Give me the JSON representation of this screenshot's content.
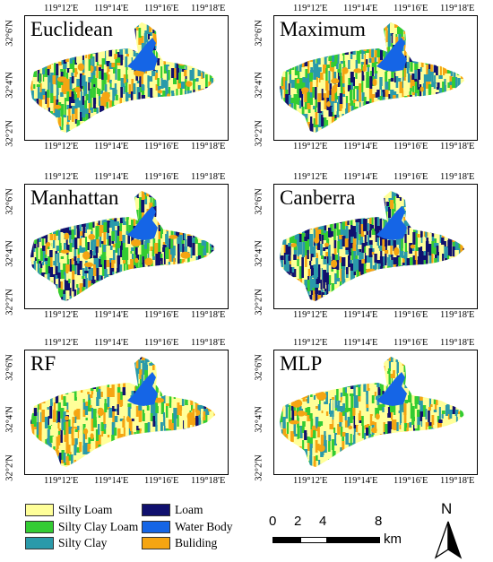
{
  "panels": [
    {
      "title": "Euclidean",
      "variant": "euclidean"
    },
    {
      "title": "Maximum",
      "variant": "euclidean"
    },
    {
      "title": "Manhattan",
      "variant": "manhattan"
    },
    {
      "title": "Canberra",
      "variant": "canberra"
    },
    {
      "title": "RF",
      "variant": "rf"
    },
    {
      "title": "MLP",
      "variant": "mlp"
    }
  ],
  "axes": {
    "x_ticks": [
      "119°12'E",
      "119°14'E",
      "119°16'E",
      "119°18'E"
    ],
    "y_ticks": [
      "32°6'N",
      "32°4'N",
      "32°2'N"
    ]
  },
  "legend": [
    {
      "label": "Silty Loam",
      "color": "#ffff99"
    },
    {
      "label": "Silty Clay Loam",
      "color": "#33cc33"
    },
    {
      "label": "Silty Clay",
      "color": "#2a9aaa"
    },
    {
      "label": "Loam",
      "color": "#10106e"
    },
    {
      "label": "Water Body",
      "color": "#1565e6"
    },
    {
      "label": "Buliding",
      "color": "#f5a512"
    }
  ],
  "scale_bar": {
    "labels": [
      "0",
      "2",
      "4",
      "8"
    ],
    "unit": "km"
  },
  "north_arrow": {
    "label": "N"
  }
}
